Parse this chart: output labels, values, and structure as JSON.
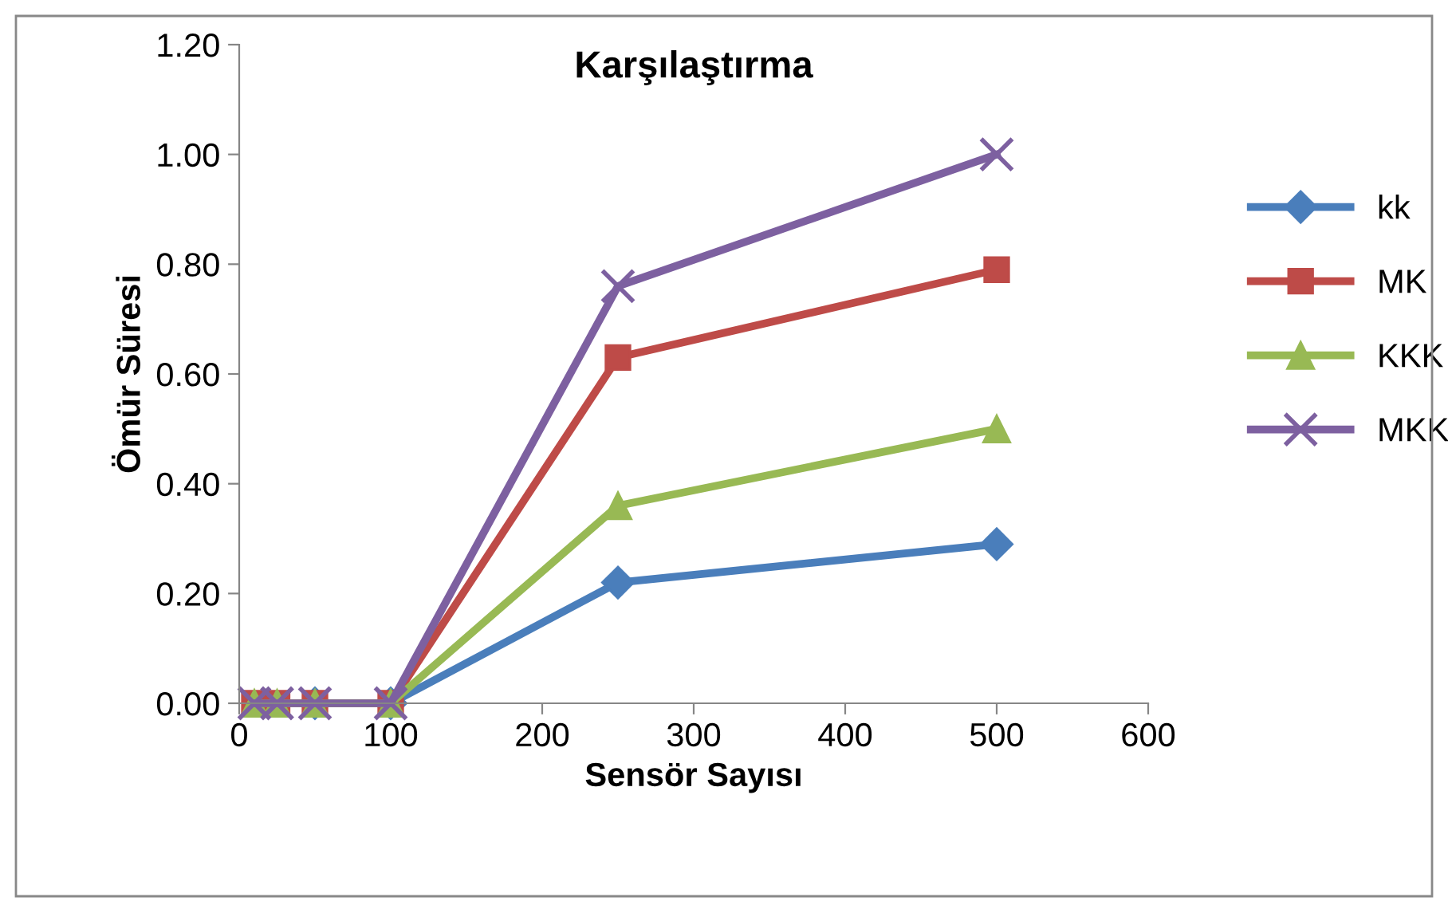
{
  "chart_data": {
    "type": "line",
    "title": "Karşılaştırma",
    "xlabel": "Sensör Sayısı",
    "ylabel": "Ömür Süresi",
    "x": [
      10,
      25,
      50,
      100,
      250,
      500
    ],
    "series": [
      {
        "name": "kk",
        "color": "#4a7ebb",
        "marker": "diamond",
        "values": [
          null,
          null,
          0,
          0,
          0.22,
          0.29
        ]
      },
      {
        "name": "MK",
        "color": "#be4b48",
        "marker": "square",
        "values": [
          0,
          0,
          0,
          0,
          0.63,
          0.79
        ]
      },
      {
        "name": "KKK",
        "color": "#98b954",
        "marker": "triangle",
        "values": [
          0,
          0,
          0,
          0,
          0.36,
          0.5
        ]
      },
      {
        "name": "MKK",
        "color": "#7d60a0",
        "marker": "cross",
        "values": [
          0,
          0,
          0,
          0,
          0.76,
          1.0
        ]
      }
    ],
    "xlim": [
      0,
      600
    ],
    "xticks": [
      0,
      100,
      200,
      300,
      400,
      500,
      600
    ],
    "ylim": [
      0,
      1.2
    ],
    "yticks": [
      {
        "value": 0,
        "label": "0.00"
      },
      {
        "value": 0.2,
        "label": "0.20"
      },
      {
        "value": 0.4,
        "label": "0.40"
      },
      {
        "value": 0.6,
        "label": "0.60"
      },
      {
        "value": 0.8,
        "label": "0.80"
      },
      {
        "value": 1.0,
        "label": "1.00"
      },
      {
        "value": 1.2,
        "label": "1.20"
      }
    ],
    "grid": false,
    "legend": "right",
    "line_style": "solid"
  }
}
